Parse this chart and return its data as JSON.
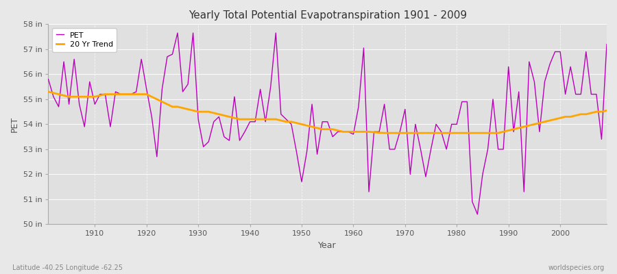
{
  "title": "Yearly Total Potential Evapotranspiration 1901 - 2009",
  "xlabel": "Year",
  "ylabel": "PET",
  "subtitle_left": "Latitude -40.25 Longitude -62.25",
  "subtitle_right": "worldspecies.org",
  "pet_color": "#bb00bb",
  "trend_color": "#ffa500",
  "fig_bg_color": "#e8e8e8",
  "plot_bg_color": "#e0e0e0",
  "ylim": [
    50,
    58
  ],
  "xlim": [
    1901,
    2009
  ],
  "yticks": [
    50,
    51,
    52,
    53,
    54,
    55,
    56,
    57,
    58
  ],
  "ytick_labels": [
    "50 in",
    "51 in",
    "52 in",
    "53 in",
    "54 in",
    "55 in",
    "56 in",
    "57 in",
    "58 in"
  ],
  "xticks": [
    1910,
    1920,
    1930,
    1940,
    1950,
    1960,
    1970,
    1980,
    1990,
    2000
  ],
  "years": [
    1901,
    1902,
    1903,
    1904,
    1905,
    1906,
    1907,
    1908,
    1909,
    1910,
    1911,
    1912,
    1913,
    1914,
    1915,
    1916,
    1917,
    1918,
    1919,
    1920,
    1921,
    1922,
    1923,
    1924,
    1925,
    1926,
    1927,
    1928,
    1929,
    1930,
    1931,
    1932,
    1933,
    1934,
    1935,
    1936,
    1937,
    1938,
    1939,
    1940,
    1941,
    1942,
    1943,
    1944,
    1945,
    1946,
    1947,
    1948,
    1949,
    1950,
    1951,
    1952,
    1953,
    1954,
    1955,
    1956,
    1957,
    1958,
    1959,
    1960,
    1961,
    1962,
    1963,
    1964,
    1965,
    1966,
    1967,
    1968,
    1969,
    1970,
    1971,
    1972,
    1973,
    1974,
    1975,
    1976,
    1977,
    1978,
    1979,
    1980,
    1981,
    1982,
    1983,
    1984,
    1985,
    1986,
    1987,
    1988,
    1989,
    1990,
    1991,
    1992,
    1993,
    1994,
    1995,
    1996,
    1997,
    1998,
    1999,
    2000,
    2001,
    2002,
    2003,
    2004,
    2005,
    2006,
    2007,
    2008,
    2009
  ],
  "pet_values": [
    55.8,
    55.1,
    54.7,
    56.5,
    54.8,
    56.6,
    54.8,
    53.9,
    55.7,
    54.8,
    55.2,
    55.2,
    53.9,
    55.3,
    55.2,
    55.2,
    55.2,
    55.3,
    56.6,
    55.4,
    54.3,
    52.7,
    55.4,
    56.7,
    56.8,
    57.65,
    55.3,
    55.6,
    57.65,
    54.2,
    53.1,
    53.3,
    54.1,
    54.3,
    53.5,
    53.35,
    55.1,
    53.35,
    53.7,
    54.1,
    54.1,
    55.4,
    54.1,
    55.5,
    57.65,
    54.4,
    54.2,
    54.0,
    52.9,
    51.7,
    52.9,
    54.8,
    52.8,
    54.1,
    54.1,
    53.5,
    53.7,
    53.7,
    53.7,
    53.6,
    54.7,
    57.05,
    51.3,
    53.7,
    53.7,
    54.8,
    53.0,
    53.0,
    53.7,
    54.6,
    52.0,
    54.0,
    53.0,
    51.9,
    53.0,
    54.0,
    53.7,
    53.0,
    54.0,
    54.0,
    54.9,
    54.9,
    50.9,
    50.4,
    52.0,
    53.0,
    55.0,
    53.0,
    53.0,
    56.3,
    53.7,
    55.3,
    51.3,
    56.5,
    55.7,
    53.7,
    55.7,
    56.4,
    56.9,
    56.9,
    55.2,
    56.3,
    55.2,
    55.2,
    56.9,
    55.2,
    55.2,
    53.4,
    57.2
  ],
  "trend_years": [
    1901,
    1902,
    1903,
    1904,
    1905,
    1906,
    1907,
    1908,
    1909,
    1910,
    1911,
    1912,
    1913,
    1914,
    1915,
    1916,
    1917,
    1918,
    1919,
    1920,
    1921,
    1922,
    1923,
    1924,
    1925,
    1926,
    1927,
    1928,
    1929,
    1930,
    1931,
    1932,
    1933,
    1934,
    1935,
    1936,
    1937,
    1938,
    1939,
    1940,
    1941,
    1942,
    1943,
    1944,
    1945,
    1946,
    1947,
    1948,
    1949,
    1950,
    1951,
    1952,
    1953,
    1954,
    1955,
    1956,
    1957,
    1958,
    1959,
    1960,
    1961,
    1962,
    1963,
    1964,
    1965,
    1966,
    1967,
    1968,
    1969,
    1970,
    1971,
    1972,
    1973,
    1974,
    1975,
    1976,
    1977,
    1978,
    1979,
    1980,
    1981,
    1982,
    1983,
    1984,
    1985,
    1986,
    1987,
    1988,
    1989,
    1990,
    1991,
    1992,
    1993,
    1994,
    1995,
    1996,
    1997,
    1998,
    1999,
    2000,
    2001,
    2002,
    2003,
    2004,
    2005,
    2006,
    2007,
    2008,
    2009
  ],
  "trend_values": [
    55.3,
    55.25,
    55.2,
    55.15,
    55.1,
    55.1,
    55.1,
    55.1,
    55.1,
    55.1,
    55.15,
    55.2,
    55.2,
    55.2,
    55.2,
    55.2,
    55.2,
    55.2,
    55.2,
    55.2,
    55.1,
    55.0,
    54.9,
    54.8,
    54.7,
    54.7,
    54.65,
    54.6,
    54.55,
    54.5,
    54.5,
    54.5,
    54.45,
    54.4,
    54.35,
    54.3,
    54.25,
    54.2,
    54.2,
    54.2,
    54.2,
    54.2,
    54.2,
    54.2,
    54.2,
    54.15,
    54.1,
    54.1,
    54.05,
    54.0,
    53.95,
    53.9,
    53.85,
    53.8,
    53.8,
    53.8,
    53.75,
    53.7,
    53.7,
    53.7,
    53.7,
    53.7,
    53.7,
    53.68,
    53.66,
    53.65,
    53.65,
    53.65,
    53.65,
    53.65,
    53.65,
    53.65,
    53.65,
    53.65,
    53.65,
    53.65,
    53.65,
    53.65,
    53.65,
    53.65,
    53.65,
    53.65,
    53.65,
    53.65,
    53.65,
    53.65,
    53.65,
    53.65,
    53.7,
    53.75,
    53.8,
    53.85,
    53.9,
    53.95,
    54.0,
    54.05,
    54.1,
    54.15,
    54.2,
    54.25,
    54.3,
    54.3,
    54.35,
    54.4,
    54.4,
    54.45,
    54.5,
    54.5,
    54.55
  ]
}
